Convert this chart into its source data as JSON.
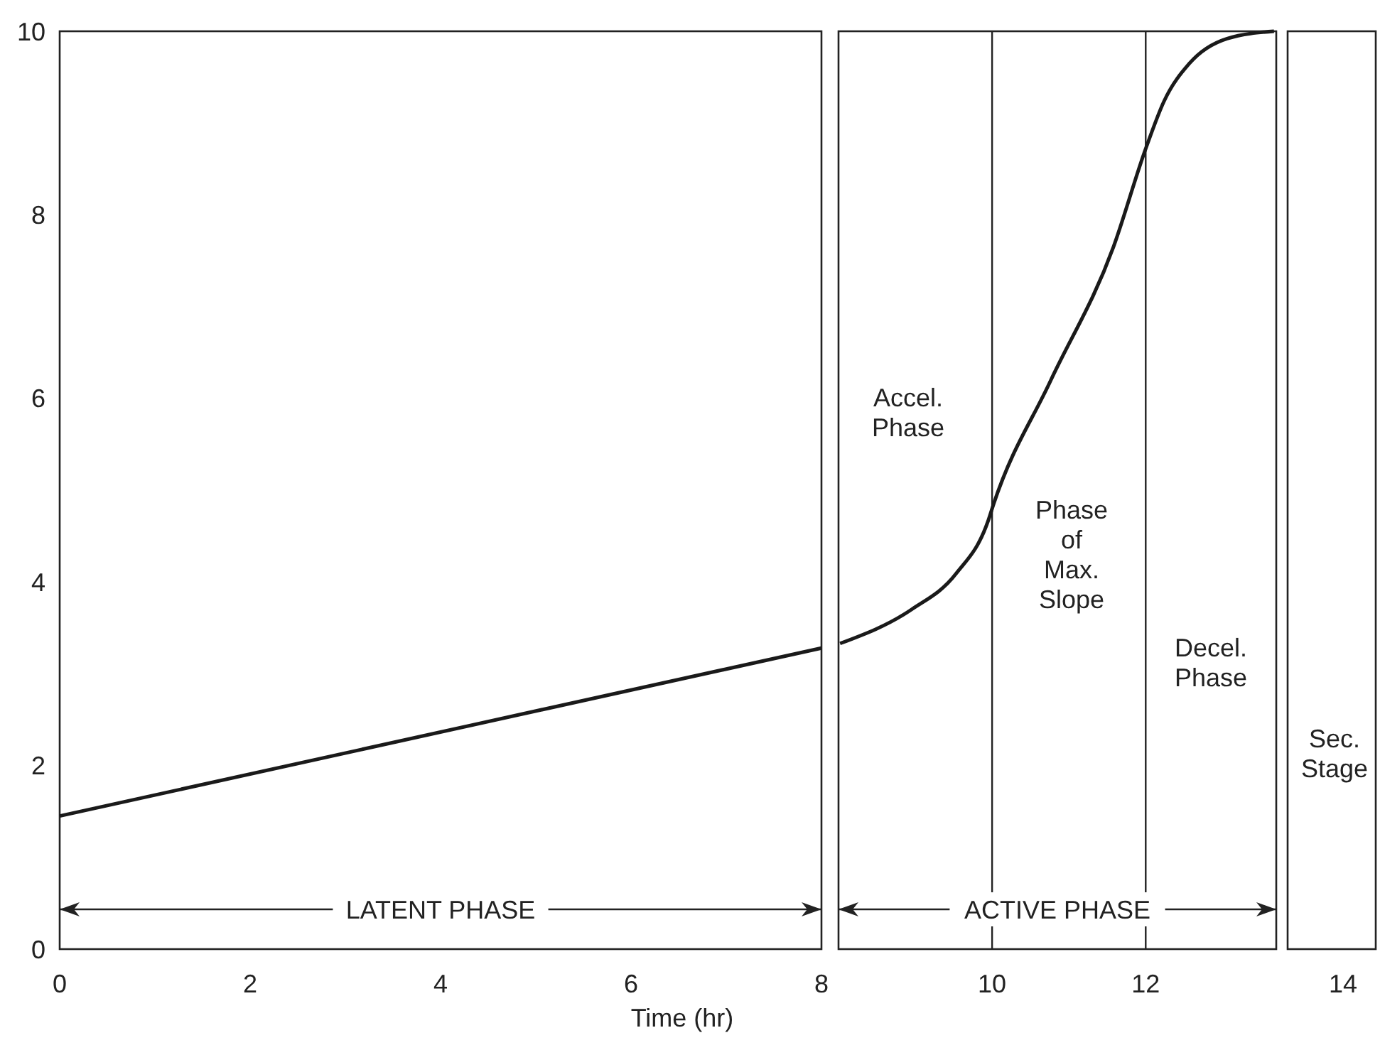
{
  "chart_data": [
    {
      "type": "line",
      "xlabel": "Time (hr)",
      "xlim": [
        0,
        8
      ],
      "xticks": [
        0,
        2,
        4,
        6,
        8
      ],
      "ylim": [
        0,
        10
      ],
      "yticks": [
        0,
        2,
        4,
        6,
        8,
        10
      ],
      "grid": false,
      "marker": "none",
      "line_style": "solid",
      "series": [
        {
          "color": "#1a1a1a",
          "x": [
            0,
            8
          ],
          "values": [
            1.45,
            3.28
          ]
        }
      ],
      "annotations": [
        "LATENT PHASE"
      ]
    },
    {
      "type": "line",
      "xlim": [
        8,
        13.7
      ],
      "xticks": [
        10,
        12
      ],
      "ylim": [
        0,
        10
      ],
      "tick_labels": "x",
      "grid": false,
      "marker": "none",
      "line_style": "solid",
      "series": [
        {
          "color": "#1a1a1a",
          "x": [
            8.02,
            8.95,
            9.53,
            9.95,
            10.02,
            10.76,
            11.58,
            12.0,
            12.24,
            12.57,
            13.06,
            13.67
          ],
          "values": [
            3.33,
            3.7,
            4.09,
            4.67,
            4.85,
            6.19,
            7.65,
            8.72,
            9.24,
            9.65,
            9.92,
            10.0
          ]
        }
      ],
      "ref_lines": [
        {
          "axis": "x",
          "value": 10
        },
        {
          "axis": "x",
          "value": 12
        }
      ],
      "annotations": [
        "ACTIVE PHASE",
        "Accel.\nPhase",
        "Phase\nof\nMax.\nSlope",
        "Decel.\nPhase"
      ]
    },
    {
      "type": "other",
      "annotations": [
        "14",
        "Sec.\nStage"
      ]
    }
  ]
}
